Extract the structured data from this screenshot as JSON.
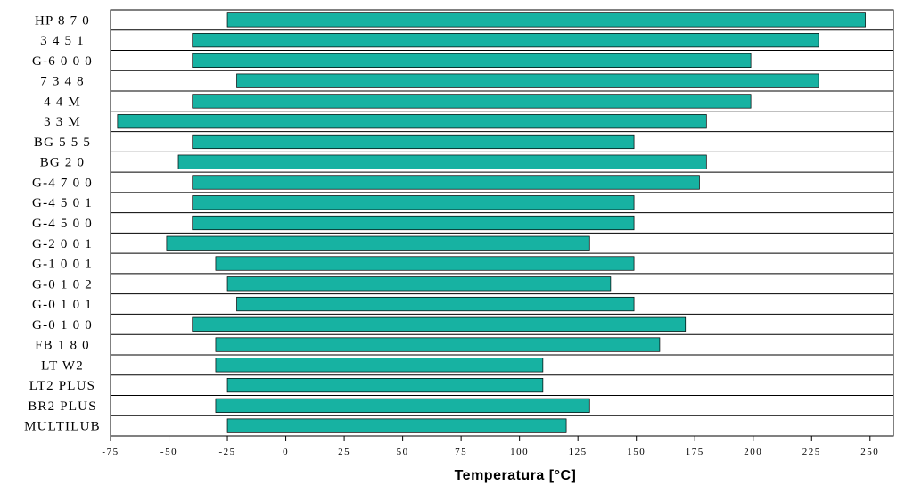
{
  "chart_data": {
    "type": "bar",
    "orientation": "horizontal",
    "title": "",
    "xlabel": "Temperatura [°C]",
    "ylabel": "",
    "xlim": [
      -75,
      260
    ],
    "xticks": [
      -75,
      -50,
      -25,
      0,
      25,
      50,
      75,
      100,
      125,
      150,
      175,
      200,
      225,
      250
    ],
    "xtick_labels": [
      "-75",
      "-50",
      "-25",
      "0",
      "25",
      "50",
      "75",
      "100",
      "125",
      "150",
      "175",
      "200",
      "225",
      "250"
    ],
    "grid": "horizontal row separators",
    "bar_color": "#17b2a2",
    "categories": [
      "HP 870",
      "3451",
      "G-6000",
      "7348",
      "44M",
      "33M",
      "BG 555",
      "BG 20",
      "G-4700",
      "G-4501",
      "G-4500",
      "G-2001",
      "G-1001",
      "G-0102",
      "G-0101",
      "G-0100",
      "FB 180",
      "LT W2",
      "LT2 PLUS",
      "BR2 PLUS",
      "MULTILUB"
    ],
    "category_labels": [
      "HP 8 7 0",
      "3 4 5 1",
      "G-6 0 0 0",
      "7 3 4 8",
      "4 4 M",
      "3 3 M",
      "BG 5 5 5",
      "BG 2 0",
      "G-4 7 0 0",
      "G-4 5 0 1",
      "G-4 5 0 0",
      "G-2 0 0 1",
      "G-1 0 0 1",
      "G-0 1 0 2",
      "G-0 1 0 1",
      "G-0 1 0 0",
      "FB 1 8 0",
      "LT W2",
      "LT2 PLUS",
      "BR2 PLUS",
      "MULTILUB"
    ],
    "ranges": [
      [
        -25,
        248
      ],
      [
        -40,
        228
      ],
      [
        -40,
        199
      ],
      [
        -21,
        228
      ],
      [
        -40,
        199
      ],
      [
        -72,
        180
      ],
      [
        -40,
        149
      ],
      [
        -46,
        180
      ],
      [
        -40,
        177
      ],
      [
        -40,
        149
      ],
      [
        -40,
        149
      ],
      [
        -51,
        130
      ],
      [
        -30,
        149
      ],
      [
        -25,
        139
      ],
      [
        -21,
        149
      ],
      [
        -40,
        171
      ],
      [
        -30,
        160
      ],
      [
        -30,
        110
      ],
      [
        -25,
        110
      ],
      [
        -30,
        130
      ],
      [
        -25,
        120
      ]
    ]
  }
}
